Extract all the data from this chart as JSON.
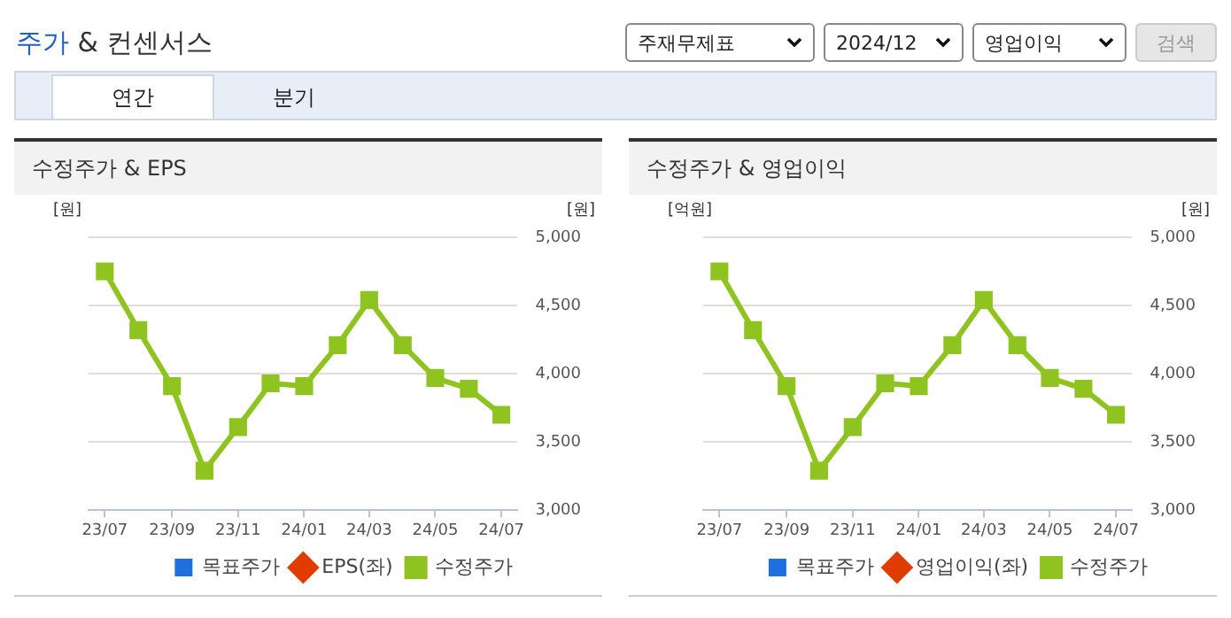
{
  "chart_data": [
    {
      "type": "other",
      "title": "주가 & 컨센서스",
      "annotations": [
        "주재무제표",
        "2024/12",
        "영업이익",
        "검색",
        "연간",
        "분기"
      ]
    },
    {
      "type": "line",
      "title": "수정주가 & EPS",
      "ylabel": "[원]",
      "y2label": "[원]",
      "x": [
        "2023-07",
        "2023-08",
        "2023-09",
        "2023-10",
        "2023-11",
        "2023-12",
        "2024-01",
        "2024-02",
        "2024-03",
        "2024-04",
        "2024-05",
        "2024-06",
        "2024-07"
      ],
      "xlim": [
        "2023-06-16",
        "2024-07-16"
      ],
      "xticks": [
        {
          "value": "2023-07",
          "label": "23/07"
        },
        {
          "value": "2023-09",
          "label": "23/09"
        },
        {
          "value": "2023-11",
          "label": "23/11"
        },
        {
          "value": "2024-01",
          "label": "24/01"
        },
        {
          "value": "2024-03",
          "label": "24/03"
        },
        {
          "value": "2024-05",
          "label": "24/05"
        },
        {
          "value": "2024-07",
          "label": "24/07"
        }
      ],
      "y2lim": [
        3000,
        5000
      ],
      "y2ticks": [
        {
          "value": 3000,
          "label": "3,000"
        },
        {
          "value": 3500,
          "label": "3,500"
        },
        {
          "value": 4000,
          "label": "4,000"
        },
        {
          "value": 4500,
          "label": "4,500"
        },
        {
          "value": 5000,
          "label": "5,000"
        }
      ],
      "grid": "y",
      "legend": "bottom",
      "tick_labels": "x",
      "series": [
        {
          "name": "목표주가",
          "type": "bar",
          "color": "#1f6fde",
          "values": [
            null,
            null,
            null,
            null,
            null,
            null,
            null,
            null,
            null,
            null,
            null,
            null,
            null
          ]
        },
        {
          "name": "EPS(좌)",
          "type": "line",
          "marker": "diamond",
          "color": "#e03c00",
          "values": [
            null,
            null,
            null,
            null,
            null,
            null,
            null,
            null,
            null,
            null,
            null,
            null,
            null
          ]
        },
        {
          "name": "수정주가",
          "type": "line",
          "marker": "square",
          "axis": "y2",
          "color": "#8fc31f",
          "values": [
            4750,
            4320,
            3910,
            3290,
            3610,
            3930,
            3910,
            4210,
            4540,
            4210,
            3970,
            3890,
            3700
          ]
        }
      ]
    },
    {
      "type": "line",
      "title": "수정주가 & 영업이익",
      "ylabel": "[억원]",
      "y2label": "[원]",
      "x": [
        "2023-07",
        "2023-08",
        "2023-09",
        "2023-10",
        "2023-11",
        "2023-12",
        "2024-01",
        "2024-02",
        "2024-03",
        "2024-04",
        "2024-05",
        "2024-06",
        "2024-07"
      ],
      "xlim": [
        "2023-06-16",
        "2024-07-16"
      ],
      "xticks": [
        {
          "value": "2023-07",
          "label": "23/07"
        },
        {
          "value": "2023-09",
          "label": "23/09"
        },
        {
          "value": "2023-11",
          "label": "23/11"
        },
        {
          "value": "2024-01",
          "label": "24/01"
        },
        {
          "value": "2024-03",
          "label": "24/03"
        },
        {
          "value": "2024-05",
          "label": "24/05"
        },
        {
          "value": "2024-07",
          "label": "24/07"
        }
      ],
      "y2lim": [
        3000,
        5000
      ],
      "y2ticks": [
        {
          "value": 3000,
          "label": "3,000"
        },
        {
          "value": 3500,
          "label": "3,500"
        },
        {
          "value": 4000,
          "label": "4,000"
        },
        {
          "value": 4500,
          "label": "4,500"
        },
        {
          "value": 5000,
          "label": "5,000"
        }
      ],
      "grid": "y",
      "legend": "bottom",
      "tick_labels": "x",
      "series": [
        {
          "name": "목표주가",
          "type": "bar",
          "color": "#1f6fde",
          "values": [
            null,
            null,
            null,
            null,
            null,
            null,
            null,
            null,
            null,
            null,
            null,
            null,
            null
          ]
        },
        {
          "name": "영업이익(좌)",
          "type": "line",
          "marker": "diamond",
          "color": "#e03c00",
          "values": [
            null,
            null,
            null,
            null,
            null,
            null,
            null,
            null,
            null,
            null,
            null,
            null,
            null
          ]
        },
        {
          "name": "수정주가",
          "type": "line",
          "marker": "square",
          "axis": "y2",
          "color": "#8fc31f",
          "values": [
            4750,
            4320,
            3910,
            3290,
            3610,
            3930,
            3910,
            4210,
            4540,
            4210,
            3970,
            3890,
            3700
          ]
        }
      ]
    }
  ]
}
